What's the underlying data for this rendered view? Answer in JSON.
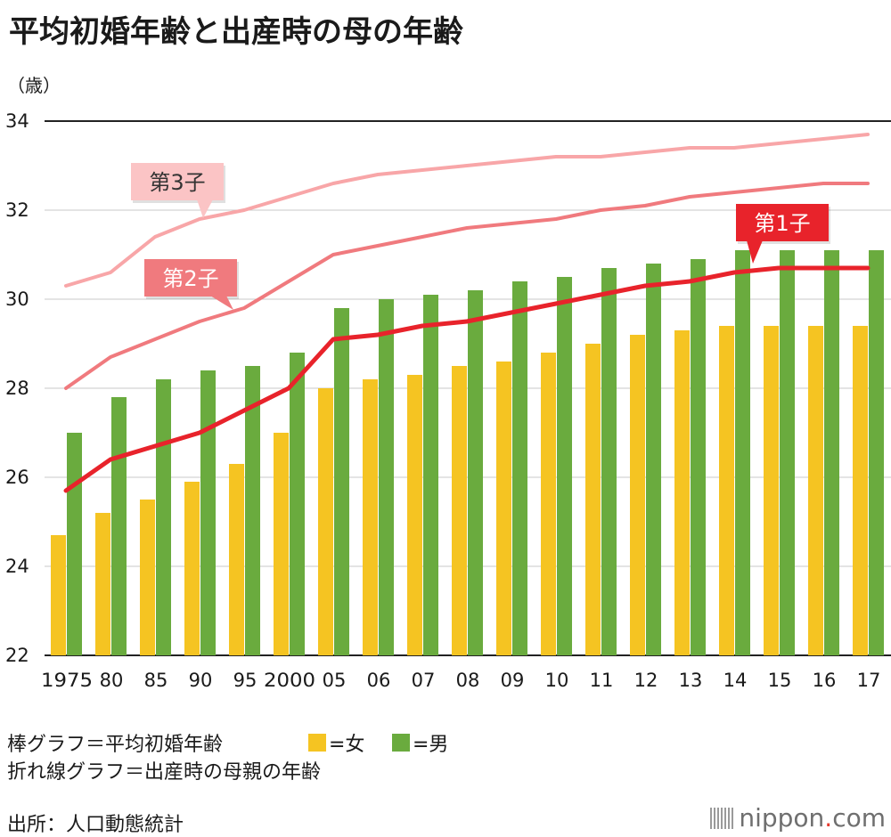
{
  "title": "平均初婚年齢と出産時の母の年齢",
  "unit_label": "（歳）",
  "legend": {
    "bar_caption": "棒グラフ＝平均初婚年齢",
    "line_caption": "折れ線グラフ＝出産時の母親の年齢",
    "female_label": "=女",
    "male_label": "=男"
  },
  "source": "出所：人口動態統計",
  "logo": {
    "main": "nippon",
    "dot": ".",
    "suffix": "com"
  },
  "colors": {
    "female_bar": "#f5c422",
    "male_bar": "#6aab3e",
    "first_child": "#e8232b",
    "second_child": "#f07a7e",
    "third_child": "#f8a6a8"
  },
  "chart_data": {
    "type": "bar",
    "categories": [
      "1975",
      "80",
      "85",
      "90",
      "95",
      "2000",
      "05",
      "06",
      "07",
      "08",
      "09",
      "10",
      "11",
      "12",
      "13",
      "14",
      "15",
      "16",
      "17"
    ],
    "ylim": [
      22,
      34
    ],
    "yticks": [
      22,
      24,
      26,
      28,
      30,
      32,
      34
    ],
    "grid": true,
    "bar_series": [
      {
        "name": "女",
        "color": "#f5c422",
        "values": [
          24.7,
          25.2,
          25.5,
          25.9,
          26.3,
          27.0,
          28.0,
          28.2,
          28.3,
          28.5,
          28.6,
          28.8,
          29.0,
          29.2,
          29.3,
          29.4,
          29.4,
          29.4,
          29.4
        ]
      },
      {
        "name": "男",
        "color": "#6aab3e",
        "values": [
          27.0,
          27.8,
          28.2,
          28.4,
          28.5,
          28.8,
          29.8,
          30.0,
          30.1,
          30.2,
          30.4,
          30.5,
          30.7,
          30.8,
          30.9,
          31.1,
          31.1,
          31.1,
          31.1
        ]
      }
    ],
    "line_series": [
      {
        "name": "第1子",
        "color": "#e8232b",
        "width": 5,
        "values": [
          25.7,
          26.4,
          26.7,
          27.0,
          27.5,
          28.0,
          29.1,
          29.2,
          29.4,
          29.5,
          29.7,
          29.9,
          30.1,
          30.3,
          30.4,
          30.6,
          30.7,
          30.7,
          30.7
        ]
      },
      {
        "name": "第2子",
        "color": "#f07a7e",
        "width": 4,
        "values": [
          28.0,
          28.7,
          29.1,
          29.5,
          29.8,
          30.4,
          31.0,
          31.2,
          31.4,
          31.6,
          31.7,
          31.8,
          32.0,
          32.1,
          32.3,
          32.4,
          32.5,
          32.6,
          32.6
        ]
      },
      {
        "name": "第3子",
        "color": "#f8a6a8",
        "width": 4,
        "values": [
          30.3,
          30.6,
          31.4,
          31.8,
          32.0,
          32.3,
          32.6,
          32.8,
          32.9,
          33.0,
          33.1,
          33.2,
          33.2,
          33.3,
          33.4,
          33.4,
          33.5,
          33.6,
          33.7
        ]
      }
    ],
    "annotations": [
      {
        "text": "第1子",
        "series": "第1子",
        "color": "#e8232b",
        "text_color": "#ffffff"
      },
      {
        "text": "第2子",
        "series": "第2子",
        "color": "#f07a7e",
        "text_color": "#ffffff"
      },
      {
        "text": "第3子",
        "series": "第3子",
        "color": "#fbc4c5",
        "text_color": "#333333"
      }
    ]
  }
}
